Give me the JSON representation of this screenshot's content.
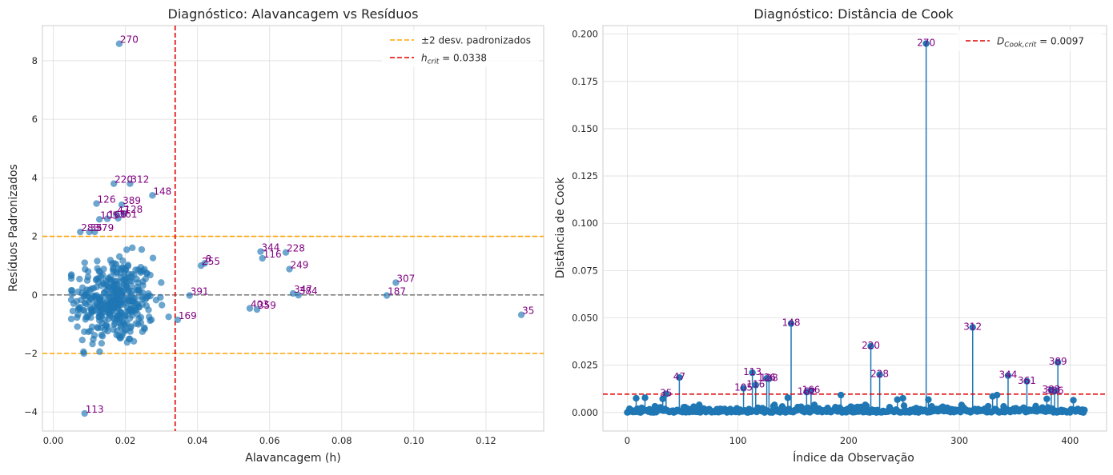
{
  "chart_data": [
    {
      "type": "scatter",
      "title": "Diagnóstico: Alavancagem vs Resíduos",
      "xlabel": "Alavancagem (h)",
      "ylabel": "Resíduos Padronizados",
      "xlim": [
        -0.003,
        0.136
      ],
      "ylim": [
        -4.65,
        9.2
      ],
      "xticks": [
        0.0,
        0.02,
        0.04,
        0.06,
        0.08,
        0.1,
        0.12
      ],
      "xtick_labels": [
        "0.00",
        "0.02",
        "0.04",
        "0.06",
        "0.08",
        "0.10",
        "0.12"
      ],
      "yticks": [
        -4,
        -2,
        0,
        2,
        4,
        6,
        8
      ],
      "ytick_labels": [
        "−4",
        "−2",
        "0",
        "2",
        "4",
        "6",
        "8"
      ],
      "grid": true,
      "legend_position": "top-right",
      "point_color": "#1f77b4",
      "label_color": "#800080",
      "reference_lines": [
        {
          "orientation": "horizontal",
          "value": 2,
          "color": "#ffa500",
          "style": "dashed",
          "legend": "±2 desv. padronizados"
        },
        {
          "orientation": "horizontal",
          "value": -2,
          "color": "#ffa500",
          "style": "dashed",
          "legend": ""
        },
        {
          "orientation": "horizontal",
          "value": 0,
          "color": "#808080",
          "style": "dashed",
          "legend": ""
        },
        {
          "orientation": "vertical",
          "value": 0.0338,
          "color": "#e00000",
          "style": "dashed",
          "legend": "h_crit = 0.0338",
          "legend_main": "h",
          "legend_sub": "crit",
          "legend_value": " = 0.0338"
        }
      ],
      "labeled_points": [
        {
          "label": "270",
          "x": 0.0183,
          "y": 8.58
        },
        {
          "label": "220",
          "x": 0.0168,
          "y": 3.8
        },
        {
          "label": "312",
          "x": 0.0213,
          "y": 3.8
        },
        {
          "label": "148",
          "x": 0.0275,
          "y": 3.4
        },
        {
          "label": "126",
          "x": 0.012,
          "y": 3.12
        },
        {
          "label": "389",
          "x": 0.019,
          "y": 3.08
        },
        {
          "label": "47",
          "x": 0.0175,
          "y": 2.75
        },
        {
          "label": "128",
          "x": 0.0195,
          "y": 2.78
        },
        {
          "label": "105",
          "x": 0.0128,
          "y": 2.58
        },
        {
          "label": "166",
          "x": 0.015,
          "y": 2.6
        },
        {
          "label": "361",
          "x": 0.018,
          "y": 2.62
        },
        {
          "label": "283",
          "x": 0.0075,
          "y": 2.15
        },
        {
          "label": "35",
          "x": 0.01,
          "y": 2.15
        },
        {
          "label": "379",
          "x": 0.0115,
          "y": 2.15
        },
        {
          "label": "8",
          "x": 0.042,
          "y": 1.08
        },
        {
          "label": "255",
          "x": 0.041,
          "y": 1.0
        },
        {
          "label": "344",
          "x": 0.0575,
          "y": 1.48
        },
        {
          "label": "116",
          "x": 0.058,
          "y": 1.25
        },
        {
          "label": "228",
          "x": 0.0645,
          "y": 1.45
        },
        {
          "label": "249",
          "x": 0.0655,
          "y": 0.88
        },
        {
          "label": "307",
          "x": 0.095,
          "y": 0.42
        },
        {
          "label": "391",
          "x": 0.0378,
          "y": -0.02
        },
        {
          "label": "347",
          "x": 0.0665,
          "y": 0.05
        },
        {
          "label": "384",
          "x": 0.068,
          "y": -0.01
        },
        {
          "label": "187",
          "x": 0.0925,
          "y": -0.02
        },
        {
          "label": "403",
          "x": 0.0545,
          "y": -0.46
        },
        {
          "label": "359",
          "x": 0.0565,
          "y": -0.5
        },
        {
          "label": "169",
          "x": 0.0345,
          "y": -0.85
        },
        {
          "label": "35",
          "x": 0.1298,
          "y": -0.68
        },
        {
          "label": "113",
          "x": 0.0087,
          "y": -4.05
        }
      ],
      "unlabeled_points": {
        "count": 380,
        "x_range": [
          0.005,
          0.032
        ],
        "y_range": [
          -2.0,
          1.8
        ],
        "note_hidden": true
      }
    },
    {
      "type": "stem",
      "title": "Diagnóstico: Distância de Cook",
      "xlabel": "Índice da Observação",
      "ylabel": "Distância de Cook",
      "xlim": [
        -22,
        433
      ],
      "ylim": [
        -0.0098,
        0.2045
      ],
      "xticks": [
        0,
        100,
        200,
        300,
        400
      ],
      "xtick_labels": [
        "0",
        "100",
        "200",
        "300",
        "400"
      ],
      "yticks": [
        0.0,
        0.025,
        0.05,
        0.075,
        0.1,
        0.125,
        0.15,
        0.175,
        0.2
      ],
      "ytick_labels": [
        "0.000",
        "0.025",
        "0.050",
        "0.075",
        "0.100",
        "0.125",
        "0.150",
        "0.175",
        "0.200"
      ],
      "grid": true,
      "legend_position": "top-right",
      "point_color": "#1f77b4",
      "label_color": "#800080",
      "threshold": {
        "value": 0.0097,
        "color": "#e00000",
        "style": "dashed",
        "legend": "D_Cook,crit = 0.0097",
        "legend_main": "D",
        "legend_sub": "Cook,crit",
        "legend_value": " = 0.0097"
      },
      "labeled_points": [
        {
          "label": "270",
          "x": 270,
          "y": 0.195
        },
        {
          "label": "148",
          "x": 148,
          "y": 0.047
        },
        {
          "label": "312",
          "x": 312,
          "y": 0.045
        },
        {
          "label": "220",
          "x": 220,
          "y": 0.035
        },
        {
          "label": "389",
          "x": 389,
          "y": 0.0265
        },
        {
          "label": "113",
          "x": 113,
          "y": 0.021
        },
        {
          "label": "228",
          "x": 228,
          "y": 0.02
        },
        {
          "label": "344",
          "x": 344,
          "y": 0.0195
        },
        {
          "label": "47",
          "x": 47,
          "y": 0.0185
        },
        {
          "label": "126",
          "x": 126,
          "y": 0.018
        },
        {
          "label": "128",
          "x": 128,
          "y": 0.0178
        },
        {
          "label": "361",
          "x": 361,
          "y": 0.0165
        },
        {
          "label": "116",
          "x": 116,
          "y": 0.0145
        },
        {
          "label": "105",
          "x": 105,
          "y": 0.0128
        },
        {
          "label": "166",
          "x": 166,
          "y": 0.0115
        },
        {
          "label": "162",
          "x": 162,
          "y": 0.0108
        },
        {
          "label": "35",
          "x": 35,
          "y": 0.0098
        },
        {
          "label": "383",
          "x": 383,
          "y": 0.0118
        },
        {
          "label": "386",
          "x": 386,
          "y": 0.0112
        }
      ],
      "other_spikes": [
        {
          "x": 8,
          "y": 0.0075
        },
        {
          "x": 16,
          "y": 0.0078
        },
        {
          "x": 32,
          "y": 0.0072
        },
        {
          "x": 145,
          "y": 0.0078
        },
        {
          "x": 193,
          "y": 0.0092
        },
        {
          "x": 244,
          "y": 0.0068
        },
        {
          "x": 249,
          "y": 0.0075
        },
        {
          "x": 272,
          "y": 0.0068
        },
        {
          "x": 330,
          "y": 0.0085
        },
        {
          "x": 334,
          "y": 0.0092
        },
        {
          "x": 379,
          "y": 0.0072
        },
        {
          "x": 403,
          "y": 0.0065
        }
      ],
      "unlabeled_points": {
        "count": 414,
        "x_range": [
          0,
          413
        ],
        "y_range": [
          0.0,
          0.004
        ],
        "note_hidden": true
      }
    }
  ]
}
